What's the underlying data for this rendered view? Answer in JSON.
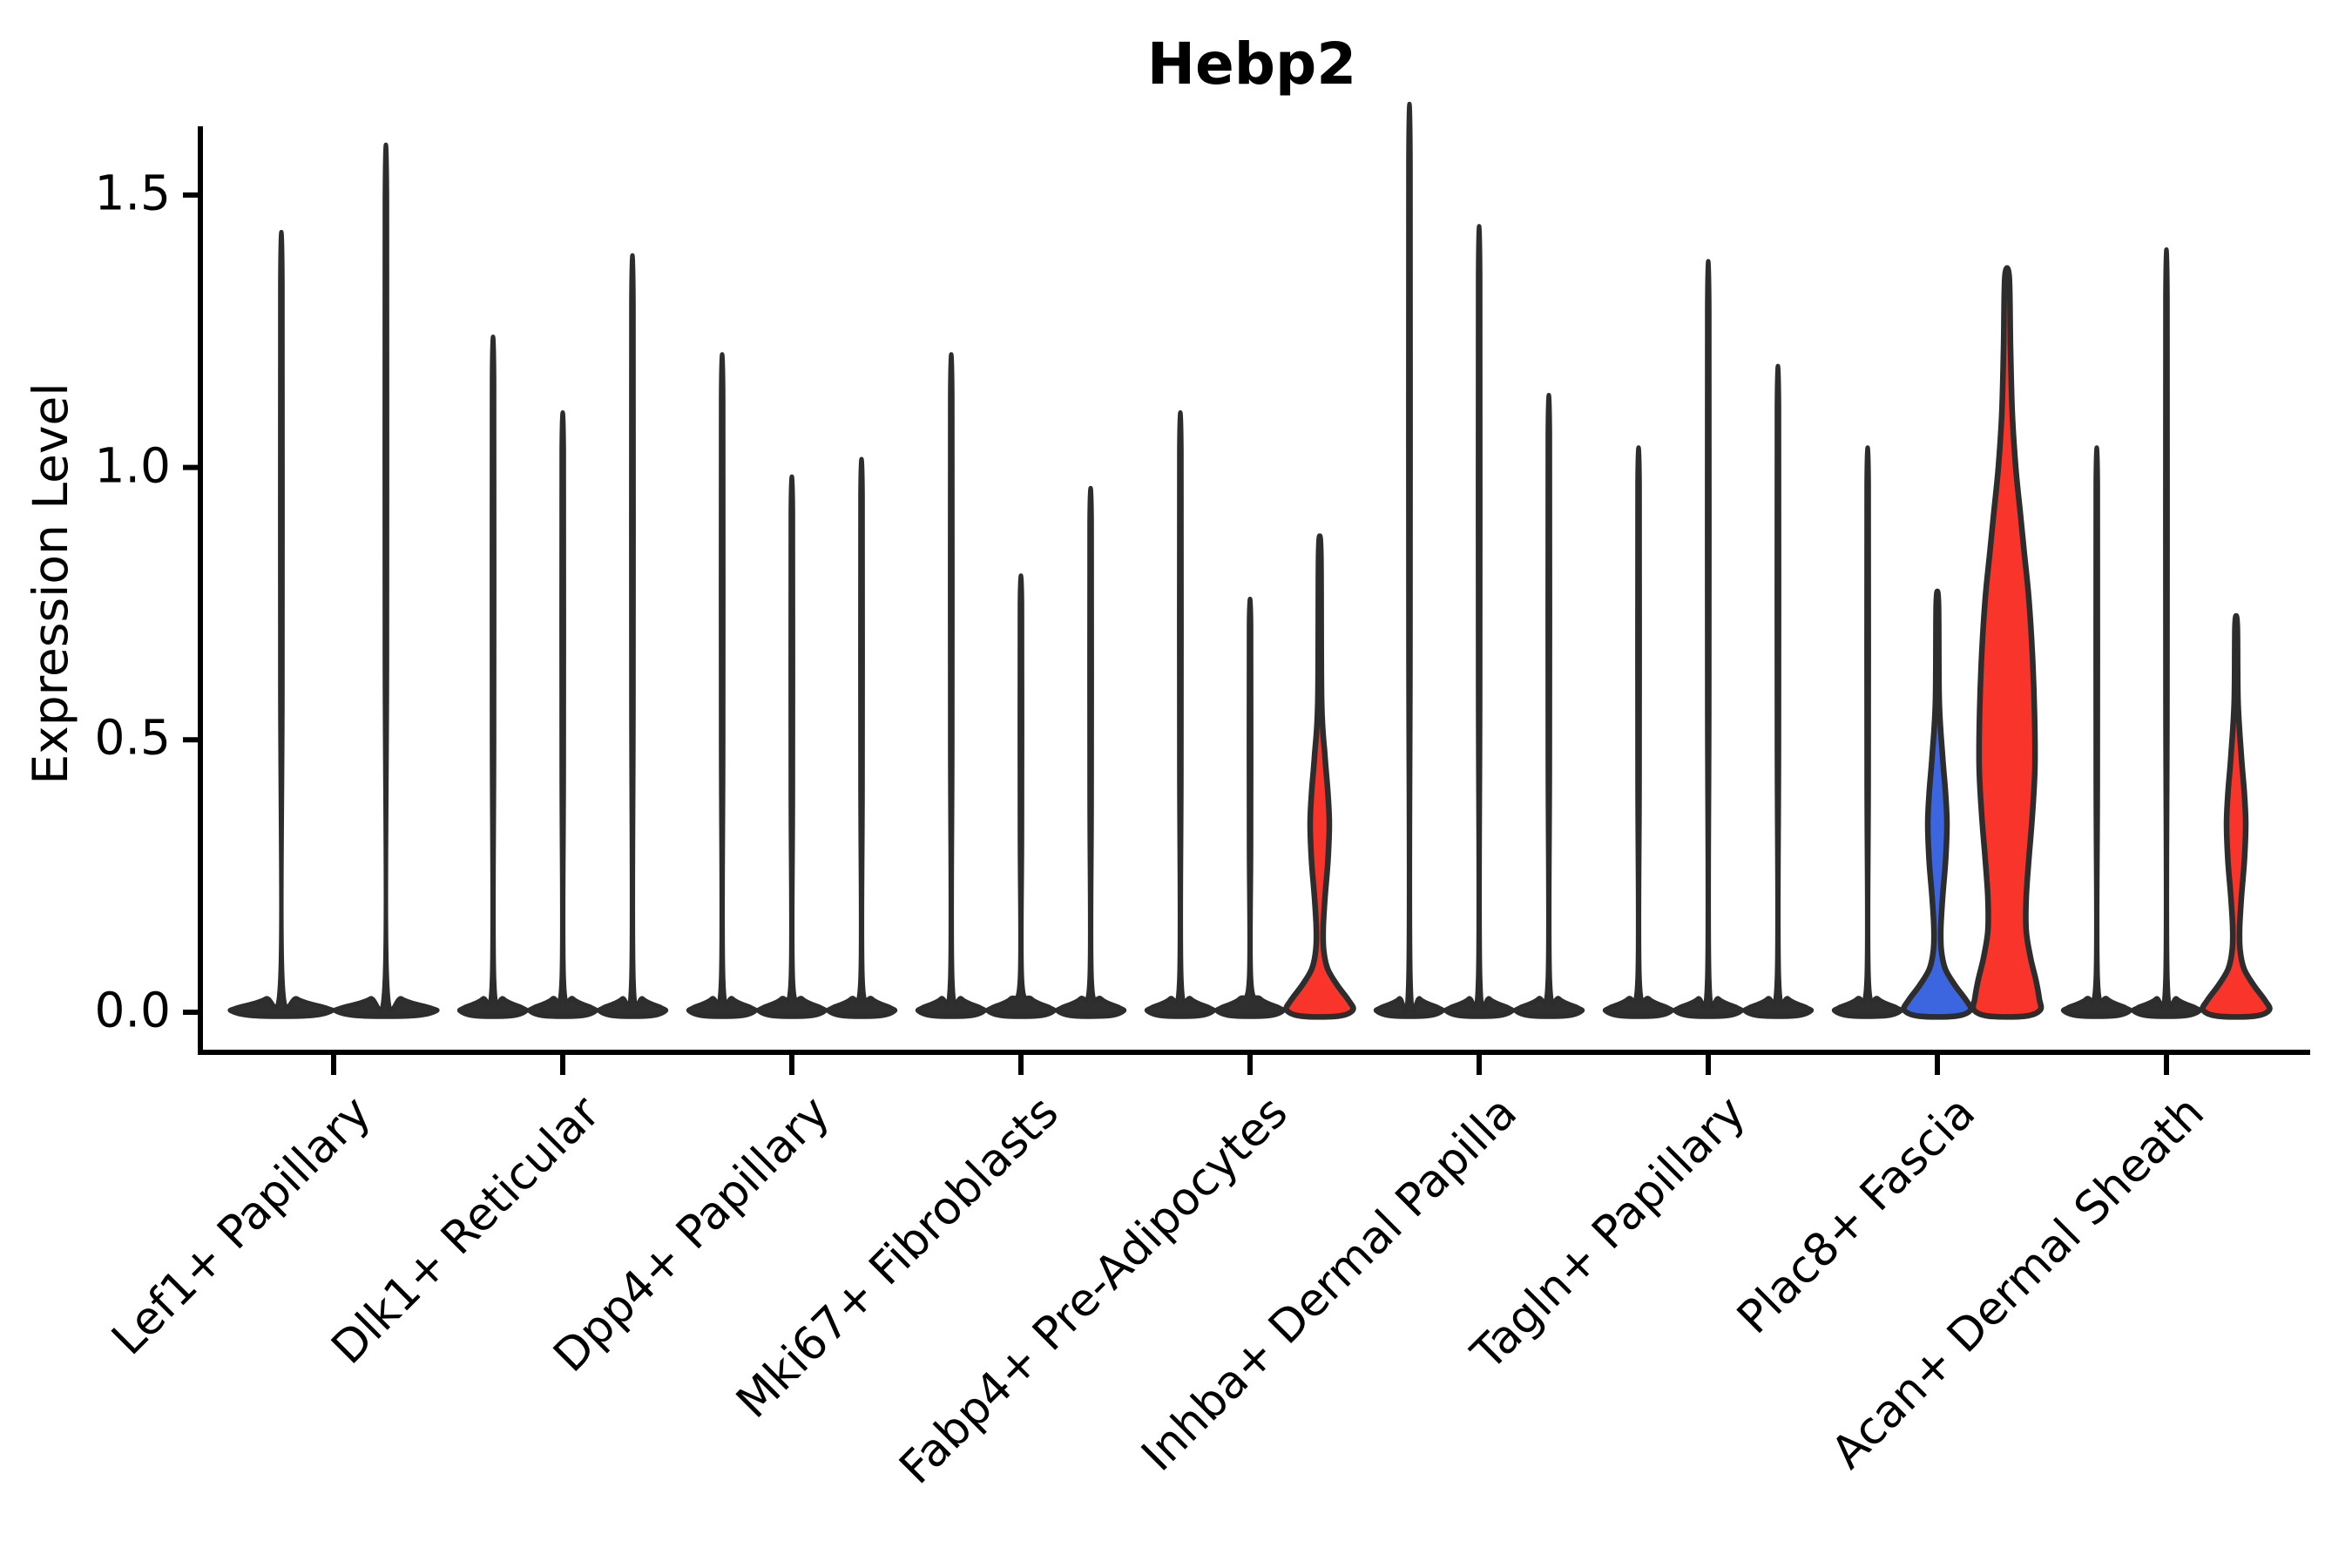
{
  "window": {
    "title": "Hebp2"
  },
  "chart_data": {
    "type": "violin",
    "title": "Hebp2",
    "ylabel": "Expression Level",
    "xlabel": "",
    "yticks": [
      0.0,
      0.5,
      1.0,
      1.5
    ],
    "ylim": [
      0,
      1.62
    ],
    "grid": false,
    "legend": "none",
    "x_tick_rotation_deg": 45,
    "categories": [
      "Lef1+ Papillary",
      "Dlk1+ Reticular",
      "Dpp4+ Papillary",
      "Mki67+ Fibroblasts",
      "Fabp4+ Pre-Adipocytes",
      "Inhba+ Dermal Papilla",
      "Tagln+ Papillary",
      "Plac8+ Fascia",
      "Acan+ Dermal Sheath"
    ],
    "colors": {
      "red": "#F8342B",
      "blue": "#3C66DF",
      "dark": "#2F2F2F",
      "outline": "#2D2D2D",
      "axis": "#000000"
    },
    "violins": [
      {
        "category": "Lef1+ Papillary",
        "slot": 0,
        "n_slots": 2,
        "max": 1.34,
        "color": "dark",
        "shape": "collapsed"
      },
      {
        "category": "Lef1+ Papillary",
        "slot": 1,
        "n_slots": 2,
        "max": 1.49,
        "color": "dark",
        "shape": "collapsed"
      },
      {
        "category": "Dlk1+ Reticular",
        "slot": 0,
        "n_slots": 3,
        "max": 1.16,
        "color": "dark",
        "shape": "collapsed"
      },
      {
        "category": "Dlk1+ Reticular",
        "slot": 1,
        "n_slots": 3,
        "max": 1.03,
        "color": "dark",
        "shape": "collapsed"
      },
      {
        "category": "Dlk1+ Reticular",
        "slot": 2,
        "n_slots": 3,
        "max": 1.3,
        "color": "dark",
        "shape": "collapsed"
      },
      {
        "category": "Dpp4+ Papillary",
        "slot": 0,
        "n_slots": 3,
        "max": 1.13,
        "color": "dark",
        "shape": "collapsed"
      },
      {
        "category": "Dpp4+ Papillary",
        "slot": 1,
        "n_slots": 3,
        "max": 0.92,
        "color": "dark",
        "shape": "collapsed"
      },
      {
        "category": "Dpp4+ Papillary",
        "slot": 2,
        "n_slots": 3,
        "max": 0.95,
        "color": "dark",
        "shape": "collapsed"
      },
      {
        "category": "Mki67+ Fibroblasts",
        "slot": 0,
        "n_slots": 3,
        "max": 1.13,
        "color": "dark",
        "shape": "collapsed"
      },
      {
        "category": "Mki67+ Fibroblasts",
        "slot": 1,
        "n_slots": 3,
        "max": 0.75,
        "color": "dark",
        "shape": "collapsed"
      },
      {
        "category": "Mki67+ Fibroblasts",
        "slot": 2,
        "n_slots": 3,
        "max": 0.9,
        "color": "dark",
        "shape": "collapsed"
      },
      {
        "category": "Fabp4+ Pre-Adipocytes",
        "slot": 0,
        "n_slots": 3,
        "max": 1.03,
        "color": "dark",
        "shape": "collapsed"
      },
      {
        "category": "Fabp4+ Pre-Adipocytes",
        "slot": 1,
        "n_slots": 3,
        "max": 0.71,
        "color": "dark",
        "shape": "collapsed"
      },
      {
        "category": "Fabp4+ Pre-Adipocytes",
        "slot": 2,
        "n_slots": 3,
        "max": 0.84,
        "color": "red",
        "shape": "spindle"
      },
      {
        "category": "Inhba+ Dermal Papilla",
        "slot": 0,
        "n_slots": 3,
        "max": 1.56,
        "color": "dark",
        "shape": "collapsed"
      },
      {
        "category": "Inhba+ Dermal Papilla",
        "slot": 1,
        "n_slots": 3,
        "max": 1.35,
        "color": "dark",
        "shape": "collapsed"
      },
      {
        "category": "Inhba+ Dermal Papilla",
        "slot": 2,
        "n_slots": 3,
        "max": 1.06,
        "color": "dark",
        "shape": "collapsed"
      },
      {
        "category": "Tagln+ Papillary",
        "slot": 0,
        "n_slots": 3,
        "max": 0.97,
        "color": "dark",
        "shape": "collapsed"
      },
      {
        "category": "Tagln+ Papillary",
        "slot": 1,
        "n_slots": 3,
        "max": 1.29,
        "color": "dark",
        "shape": "collapsed"
      },
      {
        "category": "Tagln+ Papillary",
        "slot": 2,
        "n_slots": 3,
        "max": 1.11,
        "color": "dark",
        "shape": "collapsed"
      },
      {
        "category": "Plac8+ Fascia",
        "slot": 0,
        "n_slots": 3,
        "max": 0.97,
        "color": "dark",
        "shape": "collapsed"
      },
      {
        "category": "Plac8+ Fascia",
        "slot": 1,
        "n_slots": 3,
        "max": 0.75,
        "color": "blue",
        "shape": "spindle"
      },
      {
        "category": "Plac8+ Fascia",
        "slot": 2,
        "n_slots": 3,
        "max": 1.35,
        "color": "red",
        "shape": "wide"
      },
      {
        "category": "Acan+ Dermal Sheath",
        "slot": 0,
        "n_slots": 3,
        "max": 0.97,
        "color": "dark",
        "shape": "collapsed"
      },
      {
        "category": "Acan+ Dermal Sheath",
        "slot": 1,
        "n_slots": 3,
        "max": 1.31,
        "color": "dark",
        "shape": "collapsed"
      },
      {
        "category": "Acan+ Dermal Sheath",
        "slot": 2,
        "n_slots": 3,
        "max": 0.71,
        "color": "red",
        "shape": "spindle"
      }
    ],
    "shape_profiles": {
      "collapsed_tail": [
        [
          0.06,
          1.3
        ],
        [
          0.025,
          12
        ],
        [
          0.009,
          33
        ],
        [
          0.002,
          38
        ]
      ],
      "spindle_tail": [
        [
          0.57,
          2.2
        ],
        [
          0.47,
          6.0
        ],
        [
          0.4,
          9.5
        ],
        [
          0.345,
          11.0
        ],
        [
          0.28,
          9.5
        ],
        [
          0.21,
          6.0
        ],
        [
          0.155,
          4.0
        ],
        [
          0.115,
          4.5
        ],
        [
          0.08,
          9.0
        ],
        [
          0.05,
          20.0
        ],
        [
          0.022,
          33.0
        ],
        [
          0.004,
          38
        ]
      ],
      "wide_tail": [
        [
          1.22,
          4
        ],
        [
          1.1,
          6
        ],
        [
          1.0,
          10
        ],
        [
          0.92,
          15
        ],
        [
          0.84,
          20
        ],
        [
          0.76,
          25
        ],
        [
          0.66,
          29
        ],
        [
          0.55,
          31.5
        ],
        [
          0.45,
          32
        ],
        [
          0.36,
          29
        ],
        [
          0.28,
          25
        ],
        [
          0.21,
          22
        ],
        [
          0.15,
          22
        ],
        [
          0.1,
          27
        ],
        [
          0.06,
          33
        ],
        [
          0.025,
          37
        ],
        [
          0.004,
          38
        ]
      ],
      "reference_halfwidth": 38,
      "spike_halfwidth": 1.3
    }
  }
}
